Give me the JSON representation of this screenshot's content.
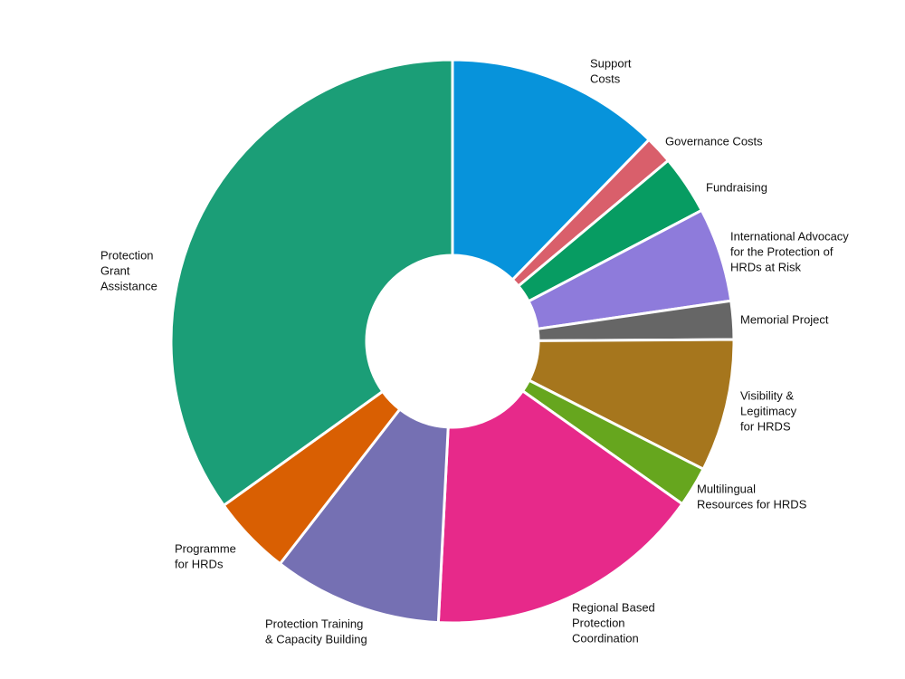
{
  "chart_data": {
    "type": "pie",
    "donut": true,
    "title": "",
    "slices": [
      {
        "label": [
          "Support",
          "Costs"
        ],
        "value": 12.3,
        "color": "#0793db"
      },
      {
        "label": [
          "Governance Costs"
        ],
        "value": 1.6,
        "color": "#d95f6b"
      },
      {
        "label": [
          "Fundraising"
        ],
        "value": 3.4,
        "color": "#079c62"
      },
      {
        "label": [
          "International Advocacy",
          "for the Protection of",
          "HRDs at Risk"
        ],
        "value": 5.4,
        "color": "#8e7bdb"
      },
      {
        "label": [
          "Memorial Project"
        ],
        "value": 2.2,
        "color": "#666666"
      },
      {
        "label": [
          "Visibility &",
          "Legitimacy",
          "for HRDS"
        ],
        "value": 7.6,
        "color": "#a6761d"
      },
      {
        "label": [
          "Multilingual",
          "Resources for HRDS"
        ],
        "value": 2.3,
        "color": "#66a61e"
      },
      {
        "label": [
          "Regional Based",
          "Protection",
          "Coordination"
        ],
        "value": 16.0,
        "color": "#e7298a"
      },
      {
        "label": [
          "Protection Training",
          "& Capacity Building"
        ],
        "value": 9.7,
        "color": "#7570b3"
      },
      {
        "label": [
          "Programme",
          "for HRDs"
        ],
        "value": 4.6,
        "color": "#d95f02"
      },
      {
        "label": [
          "Protection",
          "Grant",
          "Assistance"
        ],
        "value": 34.9,
        "color": "#1b9e77"
      }
    ]
  }
}
